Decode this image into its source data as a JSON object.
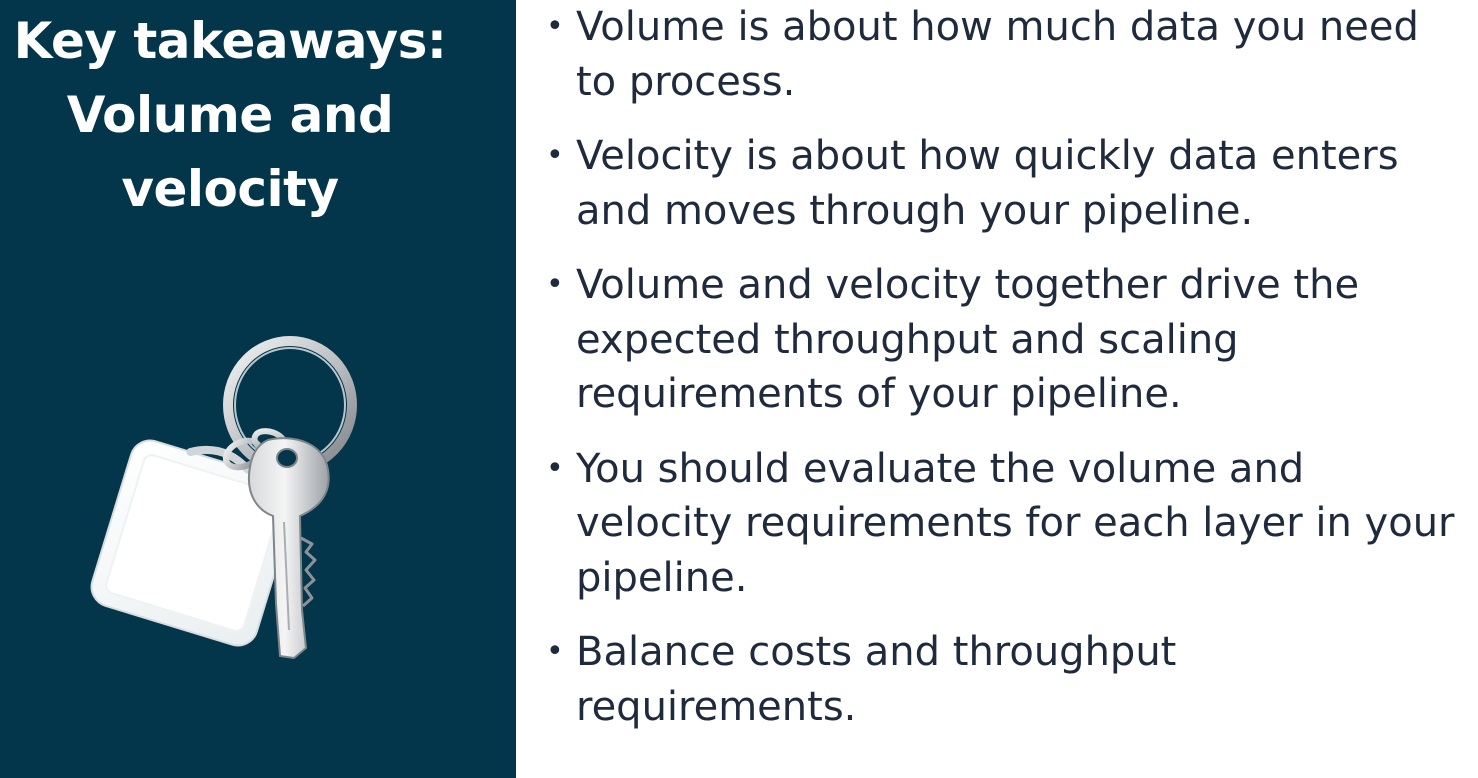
{
  "slide": {
    "title_lines": [
      "Key takeaways:",
      "Volume and",
      "velocity"
    ],
    "colors": {
      "left_panel_bg": "#03364a",
      "title_text": "#ffffff",
      "body_text": "#1f2b3d",
      "right_panel_bg": "#ffffff"
    },
    "image": {
      "icon": "keychain-icon"
    },
    "bullets": [
      "Volume is about how much data you need to process.",
      "Velocity is about how quickly data enters and moves through your pipeline.",
      "Volume and velocity together drive the expected throughput and scaling requirements of your pipeline.",
      "You should evaluate the volume and velocity requirements for each layer in your pipeline.",
      "Balance costs and throughput requirements."
    ]
  }
}
